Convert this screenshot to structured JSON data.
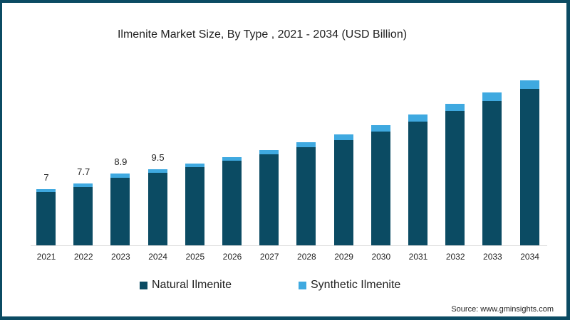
{
  "title": "Ilmenite Market Size, By Type , 2021 - 2034 (USD Billion)",
  "source": "Source: www.gminsights.com",
  "colors": {
    "natural": "#0b4b63",
    "synthetic": "#3fa9e0"
  },
  "legend": [
    {
      "label": "Natural Ilmenite",
      "color": "#0b4b63"
    },
    {
      "label": "Synthetic Ilmenite",
      "color": "#3fa9e0"
    }
  ],
  "chart_data": {
    "type": "bar",
    "stacked": true,
    "title": "Ilmenite Market Size, By Type , 2021 - 2034 (USD Billion)",
    "xlabel": "",
    "ylabel": "USD Billion",
    "categories": [
      "2021",
      "2022",
      "2023",
      "2024",
      "2025",
      "2026",
      "2027",
      "2028",
      "2029",
      "2030",
      "2031",
      "2032",
      "2033",
      "2034"
    ],
    "series": [
      {
        "name": "Natural Ilmenite",
        "values": [
          6.6,
          7.3,
          8.4,
          9.0,
          9.7,
          10.5,
          11.3,
          12.2,
          13.1,
          14.2,
          15.4,
          16.7,
          18.0,
          19.5
        ]
      },
      {
        "name": "Synthetic Ilmenite",
        "values": [
          0.4,
          0.4,
          0.5,
          0.5,
          0.5,
          0.5,
          0.6,
          0.6,
          0.7,
          0.8,
          0.9,
          0.9,
          1.0,
          1.0
        ]
      }
    ],
    "totals": [
      7.0,
      7.7,
      8.9,
      9.5,
      10.2,
      11.0,
      11.9,
      12.8,
      13.8,
      15.0,
      16.3,
      17.6,
      19.0,
      20.5
    ],
    "data_labels": {
      "2021": "7",
      "2022": "7.7",
      "2023": "8.9",
      "2024": "9.5"
    },
    "grid": false,
    "legend_position": "bottom",
    "ylim": [
      0,
      22
    ]
  }
}
